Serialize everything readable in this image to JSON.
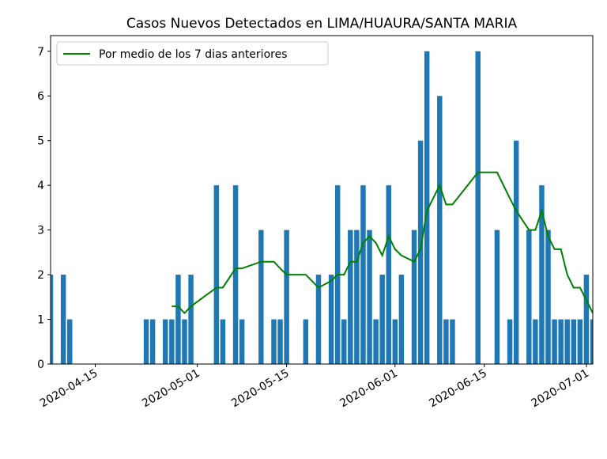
{
  "chart_data": {
    "type": "bar",
    "title": "Casos Nuevos Detectados en LIMA/HUAURA/SANTA MARIA",
    "xlim": [
      "2020-04-08",
      "2020-07-02"
    ],
    "xticks": [
      "2020-04-15",
      "2020-05-01",
      "2020-05-15",
      "2020-06-01",
      "2020-06-15",
      "2020-07-01"
    ],
    "ylim": [
      0,
      7.35
    ],
    "yticks": [
      0,
      1,
      2,
      3,
      4,
      5,
      6,
      7
    ],
    "legend": "upper left",
    "series": [
      {
        "type": "bar",
        "color": "#1f77b4",
        "x": [
          "2020-04-08",
          "2020-04-10",
          "2020-04-11",
          "2020-04-23",
          "2020-04-24",
          "2020-04-26",
          "2020-04-27",
          "2020-04-28",
          "2020-04-29",
          "2020-04-30",
          "2020-05-04",
          "2020-05-05",
          "2020-05-07",
          "2020-05-08",
          "2020-05-11",
          "2020-05-13",
          "2020-05-14",
          "2020-05-15",
          "2020-05-18",
          "2020-05-20",
          "2020-05-22",
          "2020-05-23",
          "2020-05-24",
          "2020-05-25",
          "2020-05-26",
          "2020-05-27",
          "2020-05-28",
          "2020-05-29",
          "2020-05-30",
          "2020-05-31",
          "2020-06-01",
          "2020-06-02",
          "2020-06-04",
          "2020-06-05",
          "2020-06-06",
          "2020-06-08",
          "2020-06-09",
          "2020-06-10",
          "2020-06-14",
          "2020-06-17",
          "2020-06-19",
          "2020-06-20",
          "2020-06-22",
          "2020-06-23",
          "2020-06-24",
          "2020-06-25",
          "2020-06-26",
          "2020-06-27",
          "2020-06-28",
          "2020-06-29",
          "2020-06-30",
          "2020-07-01",
          "2020-07-02"
        ],
        "values": [
          2,
          2,
          1,
          1,
          1,
          1,
          1,
          2,
          1,
          2,
          4,
          1,
          4,
          1,
          3,
          1,
          1,
          3,
          1,
          2,
          2,
          4,
          1,
          3,
          3,
          4,
          3,
          1,
          2,
          4,
          1,
          2,
          3,
          5,
          7,
          6,
          1,
          1,
          7,
          3,
          1,
          5,
          3,
          1,
          4,
          3,
          1,
          1,
          1,
          1,
          1,
          2,
          1
        ]
      },
      {
        "type": "line",
        "name": "Por medio de los 7 dias anteriores",
        "color": "#008000",
        "x": [
          "2020-04-27",
          "2020-04-28",
          "2020-04-29",
          "2020-04-30",
          "2020-05-04",
          "2020-05-05",
          "2020-05-07",
          "2020-05-08",
          "2020-05-11",
          "2020-05-13",
          "2020-05-14",
          "2020-05-15",
          "2020-05-18",
          "2020-05-20",
          "2020-05-22",
          "2020-05-23",
          "2020-05-24",
          "2020-05-25",
          "2020-05-26",
          "2020-05-27",
          "2020-05-28",
          "2020-05-29",
          "2020-05-30",
          "2020-05-31",
          "2020-06-01",
          "2020-06-02",
          "2020-06-04",
          "2020-06-05",
          "2020-06-06",
          "2020-06-08",
          "2020-06-09",
          "2020-06-10",
          "2020-06-14",
          "2020-06-17",
          "2020-06-19",
          "2020-06-20",
          "2020-06-22",
          "2020-06-23",
          "2020-06-24",
          "2020-06-25",
          "2020-06-26",
          "2020-06-27",
          "2020-06-28",
          "2020-06-29",
          "2020-06-30",
          "2020-07-01",
          "2020-07-02"
        ],
        "values": [
          1.29,
          1.29,
          1.14,
          1.29,
          1.71,
          1.71,
          2.14,
          2.14,
          2.29,
          2.29,
          2.14,
          2.0,
          2.0,
          1.71,
          1.86,
          2.0,
          2.0,
          2.29,
          2.29,
          2.71,
          2.86,
          2.71,
          2.43,
          2.86,
          2.57,
          2.43,
          2.29,
          2.57,
          3.43,
          4.0,
          3.57,
          3.57,
          4.29,
          4.29,
          3.71,
          3.43,
          3.0,
          3.0,
          3.43,
          2.86,
          2.57,
          2.57,
          2.0,
          1.71,
          1.71,
          1.43,
          1.14
        ]
      }
    ]
  }
}
